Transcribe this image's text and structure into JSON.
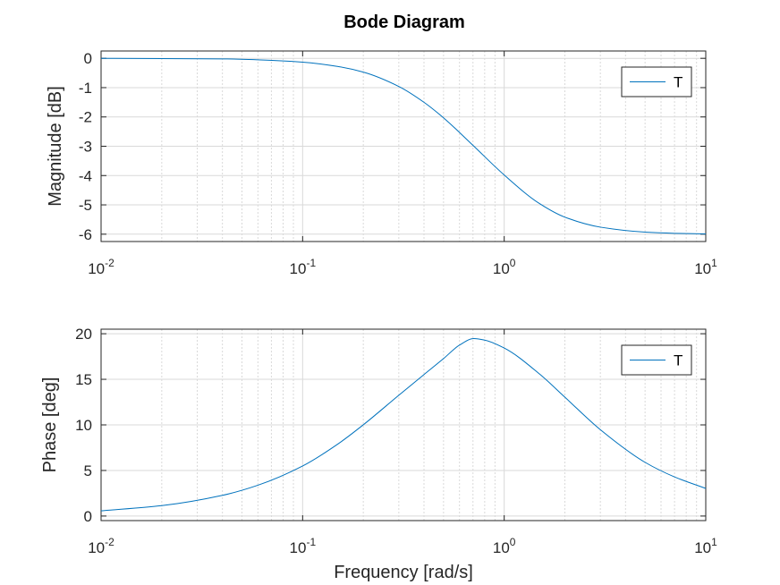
{
  "chart_data": {
    "type": "line",
    "title": "Bode Diagram",
    "xlabel": "Frequency [rad/s]",
    "xscale": "log",
    "xlim": [
      0.01,
      10
    ],
    "x_ticks": [
      {
        "base": "10",
        "exp": "-2",
        "value": 0.01
      },
      {
        "base": "10",
        "exp": "-1",
        "value": 0.1
      },
      {
        "base": "10",
        "exp": "0",
        "value": 1
      },
      {
        "base": "10",
        "exp": "1",
        "value": 10
      }
    ],
    "grid": true,
    "subplots": [
      {
        "id": "magnitude",
        "ylabel": "Magnitude [dB]",
        "ylim": [
          -6.25,
          0.25
        ],
        "y_ticks": [
          0,
          -1,
          -2,
          -3,
          -4,
          -5,
          -6
        ],
        "legend": {
          "position": "top-right",
          "entries": [
            "T"
          ]
        },
        "series": [
          {
            "name": "T",
            "color": "#0072bd",
            "x": [
              0.01,
              0.02,
              0.04,
              0.06,
              0.1,
              0.15,
              0.2,
              0.3,
              0.4,
              0.5,
              0.7,
              1,
              1.5,
              2,
              3,
              5,
              7,
              10
            ],
            "y": [
              0.0,
              -0.01,
              -0.02,
              -0.05,
              -0.13,
              -0.28,
              -0.47,
              -0.96,
              -1.5,
              -2.03,
              -2.97,
              -3.98,
              -4.96,
              -5.42,
              -5.76,
              -5.93,
              -5.97,
              -5.99
            ]
          }
        ]
      },
      {
        "id": "phase",
        "ylabel": "Phase [deg]",
        "ylim": [
          -0.5,
          20.5
        ],
        "y_ticks": [
          0,
          5,
          10,
          15,
          20
        ],
        "legend": {
          "position": "top-right",
          "entries": [
            "T"
          ]
        },
        "series": [
          {
            "name": "T",
            "color": "#0072bd",
            "x": [
              0.01,
              0.02,
              0.04,
              0.06,
              0.1,
              0.15,
              0.2,
              0.3,
              0.4,
              0.5,
              0.6,
              0.7071,
              0.8,
              1,
              1.5,
              2,
              3,
              5,
              7,
              10
            ],
            "y": [
              0.57,
              1.14,
              2.27,
              3.38,
              5.49,
              7.92,
              10.01,
              13.25,
              15.52,
              17.27,
              18.75,
              19.47,
              19.3,
              18.43,
              15.57,
              13.04,
              9.47,
              5.89,
              4.29,
              3.03
            ]
          }
        ]
      }
    ]
  }
}
